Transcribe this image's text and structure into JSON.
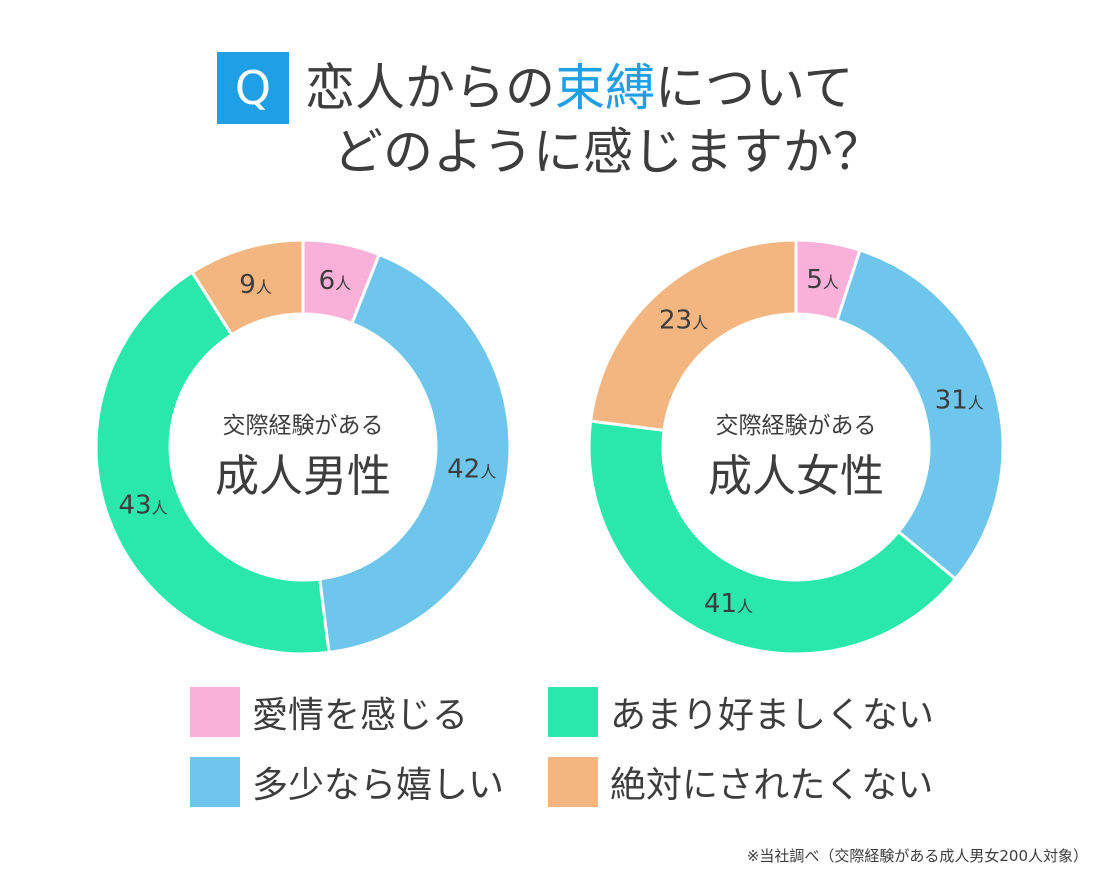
{
  "title": {
    "badge": "Q",
    "line1_before": "恋人からの",
    "line1_highlight": "束縛",
    "line1_after": "について",
    "line2": "どのように感じますか？"
  },
  "colors": {
    "accent": "#1e9fe6",
    "text": "#3d3d3d",
    "pink": "#f9b1d9",
    "blue": "#6fc6ec",
    "green": "#2ae8ab",
    "orange": "#f3b680"
  },
  "chart_data": [
    {
      "type": "pie",
      "center_label_top": "交際経験がある",
      "center_label_main": "成人男性",
      "unit": "人",
      "slices": [
        {
          "category": "愛情を感じる",
          "value": 6
        },
        {
          "category": "多少なら嬉しい",
          "value": 42
        },
        {
          "category": "あまり好ましくない",
          "value": 43
        },
        {
          "category": "絶対にされたくない",
          "value": 9
        }
      ]
    },
    {
      "type": "pie",
      "center_label_top": "交際経験がある",
      "center_label_main": "成人女性",
      "unit": "人",
      "slices": [
        {
          "category": "愛情を感じる",
          "value": 5
        },
        {
          "category": "多少なら嬉しい",
          "value": 31
        },
        {
          "category": "あまり好ましくない",
          "value": 41
        },
        {
          "category": "絶対にされたくない",
          "value": 23
        }
      ]
    }
  ],
  "legend": [
    {
      "label": "愛情を感じる",
      "color": "#f9b1d9"
    },
    {
      "label": "あまり好ましくない",
      "color": "#2ae8ab"
    },
    {
      "label": "多少なら嬉しい",
      "color": "#6fc6ec"
    },
    {
      "label": "絶対にされたくない",
      "color": "#f3b680"
    }
  ],
  "footnote": "※当社調べ（交際経験がある成人男女200人対象）"
}
